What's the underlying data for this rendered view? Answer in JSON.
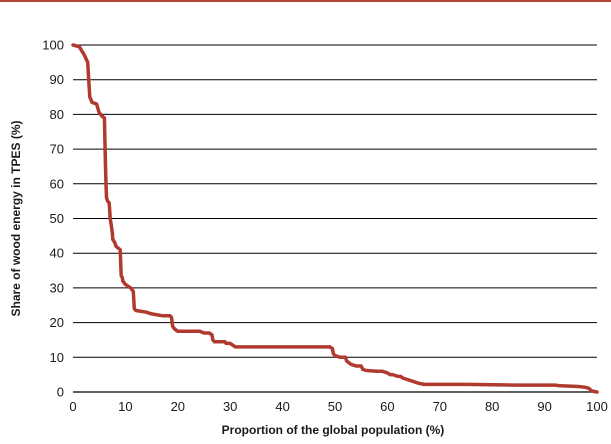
{
  "colors": {
    "accent_rule": "#b5473a",
    "series_line": "#b03a2e",
    "gridline": "#000000",
    "text": "#1a1a1a"
  },
  "chart_data": {
    "type": "line",
    "title": "",
    "xlabel": "Proportion of the global population (%)",
    "ylabel": "Share of wood energy in TPES (%)",
    "xlim": [
      0,
      100
    ],
    "ylim": [
      0,
      100
    ],
    "x_ticks": [
      0,
      10,
      20,
      30,
      40,
      50,
      60,
      70,
      80,
      90,
      100
    ],
    "y_ticks": [
      0,
      10,
      20,
      30,
      40,
      50,
      60,
      70,
      80,
      90,
      100
    ],
    "grid": "horizontal",
    "legend": "none",
    "series": [
      {
        "x": [
          0,
          1.2,
          1.6,
          2.2,
          2.5,
          2.8,
          3.0,
          3.2,
          3.5,
          3.6,
          4.5,
          5.0,
          5.3,
          5.5,
          6.0,
          6.2,
          6.3,
          6.4,
          6.5,
          6.6,
          6.9,
          7.1,
          7.3,
          7.5,
          7.6,
          8.0,
          8.2,
          9.0,
          9.2,
          9.4,
          9.5,
          10.0,
          11.0,
          11.5,
          11.7,
          12.0,
          14.0,
          15.0,
          17.0,
          18.5,
          18.8,
          19.0,
          19.2,
          19.5,
          20.0,
          22.0,
          24.0,
          24.2,
          25.0,
          26.0,
          26.5,
          26.7,
          27.0,
          29.0,
          29.2,
          30.0,
          30.5,
          31.0,
          33.0,
          35.0,
          40.0,
          45.0,
          49.0,
          49.5,
          49.7,
          50.0,
          51.0,
          52.0,
          52.2,
          53.0,
          54.0,
          55.0,
          55.3,
          56.0,
          58.0,
          59.0,
          60.0,
          60.5,
          61.0,
          62.0,
          62.5,
          63.0,
          64.0,
          65.0,
          66.0,
          67.0,
          68.0,
          70.0,
          75.0,
          80.0,
          85.0,
          90.0,
          92.0,
          93.0,
          96.0,
          97.0,
          98.0,
          98.5,
          99.0,
          100.0
        ],
        "y": [
          100,
          99.5,
          98.5,
          97,
          96,
          95,
          90,
          85,
          84,
          83.5,
          83,
          80.5,
          80,
          79.5,
          79,
          65,
          60,
          56,
          55.5,
          55,
          54.5,
          50,
          48,
          46,
          44,
          43,
          42,
          41,
          33.5,
          33,
          32,
          31,
          30,
          29,
          24,
          23.5,
          23,
          22.5,
          22,
          22,
          21.5,
          19,
          18.5,
          18,
          17.5,
          17.5,
          17.5,
          17.5,
          17,
          17,
          16.5,
          15,
          14.5,
          14.5,
          14,
          14,
          13.5,
          13,
          13,
          13,
          13,
          13,
          13,
          12.5,
          11,
          10.5,
          10,
          10,
          9,
          8,
          7.5,
          7.5,
          6.5,
          6.2,
          6,
          6,
          5.5,
          5,
          5,
          4.5,
          4.5,
          4,
          3.5,
          3,
          2.5,
          2.2,
          2.2,
          2.2,
          2.2,
          2.1,
          2.0,
          2.0,
          2.0,
          1.8,
          1.6,
          1.5,
          1.3,
          1.0,
          0.3,
          0
        ]
      }
    ]
  }
}
